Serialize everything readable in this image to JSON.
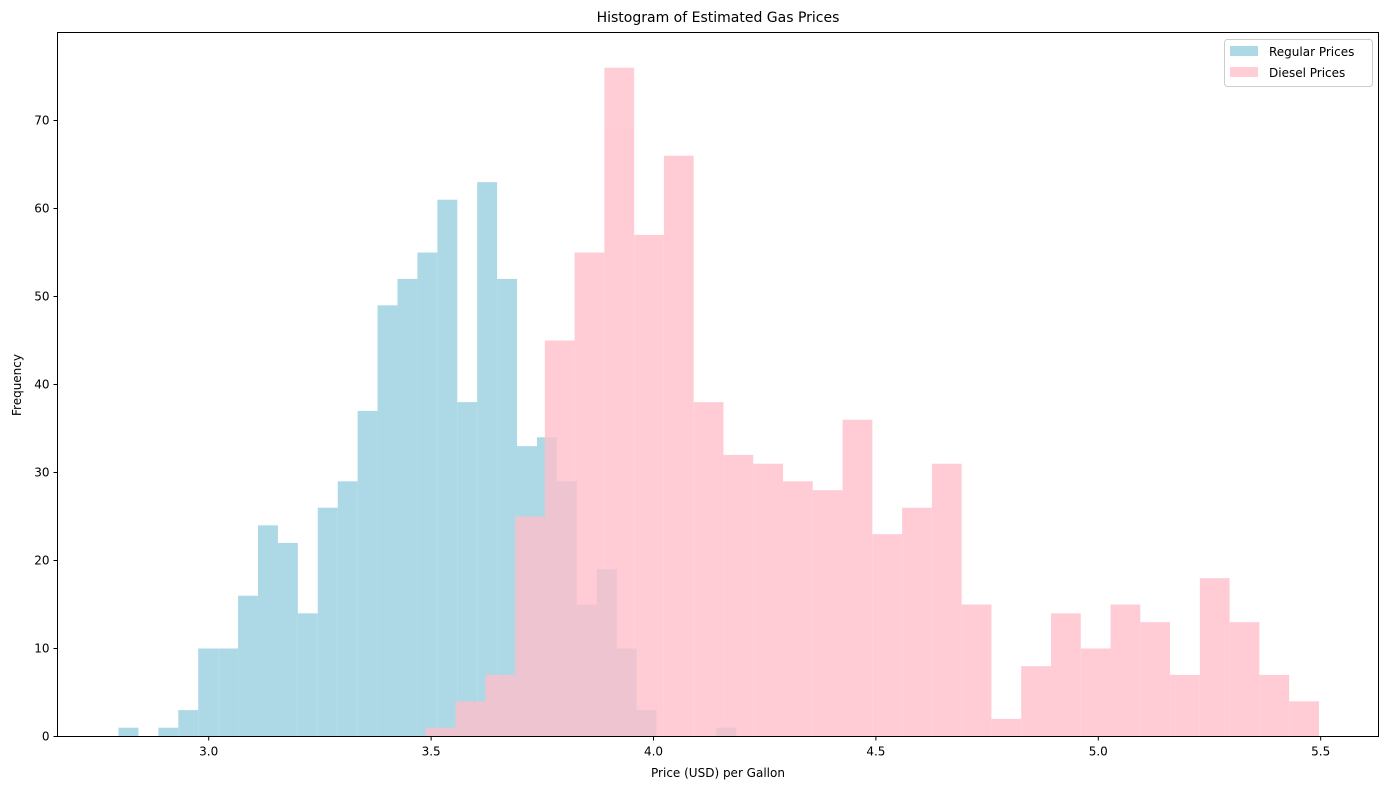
{
  "chart_data": {
    "type": "histogram",
    "title": "Histogram of Estimated Gas Prices",
    "xlabel": "Price (USD) per Gallon",
    "ylabel": "Frequency",
    "xlim": [
      2.66,
      5.63
    ],
    "ylim": [
      0,
      80
    ],
    "xticks": [
      "3.0",
      "3.5",
      "4.0",
      "4.5",
      "5.0",
      "5.5"
    ],
    "yticks": [
      "0",
      "10",
      "20",
      "30",
      "40",
      "50",
      "60",
      "70"
    ],
    "grid": false,
    "legend_position": "top-right",
    "series": [
      {
        "name": "Regular Prices",
        "color": "#add8e6",
        "alpha": 1.0,
        "bin_start": 2.7972,
        "bin_width": 0.0448,
        "counts": [
          1,
          0,
          1,
          3,
          10,
          10,
          16,
          24,
          22,
          14,
          26,
          29,
          37,
          49,
          52,
          55,
          61,
          38,
          63,
          52,
          33,
          34,
          29,
          15,
          19,
          10,
          3,
          0,
          0,
          0,
          1
        ]
      },
      {
        "name": "Diesel Prices",
        "color": "#ffc0cb",
        "alpha": 0.8,
        "bin_start": 3.4879,
        "bin_width": 0.06694,
        "counts": [
          1,
          4,
          7,
          25,
          45,
          55,
          76,
          57,
          66,
          38,
          32,
          31,
          29,
          28,
          36,
          23,
          26,
          31,
          15,
          2,
          8,
          14,
          10,
          15,
          13,
          7,
          18,
          13,
          7,
          4
        ]
      }
    ]
  }
}
